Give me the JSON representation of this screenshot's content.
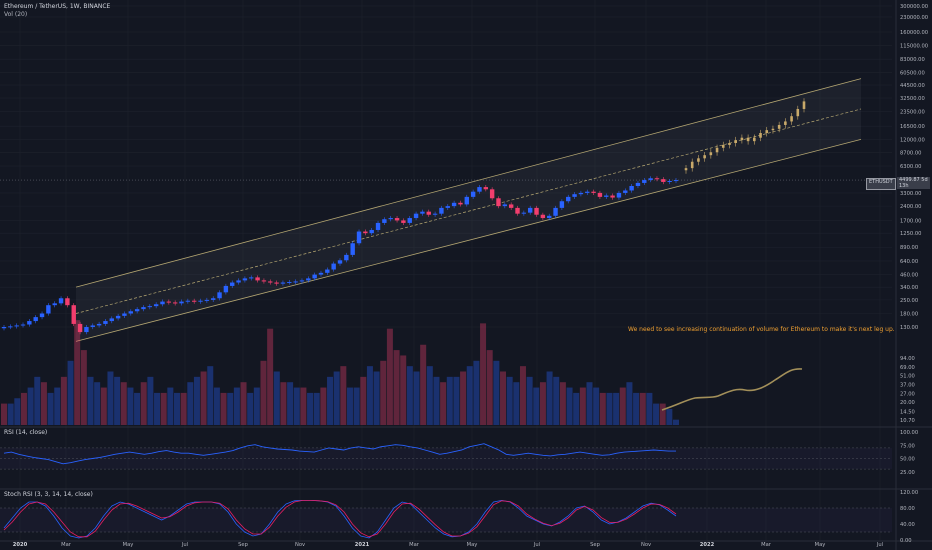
{
  "header": {
    "symbol_title": "Ethereum / TetherUS, 1W, BINANCE",
    "volume_title": "Vol (20)",
    "rsi_title": "RSI (14, close)",
    "stoch_title": "Stoch RSI (3, 3, 14, 14, close)"
  },
  "annotation": {
    "text": "We need to see increasing continuation of volume for Ethereum to make it's next leg up."
  },
  "symbol_tag": {
    "label": "ETHUSDT",
    "countdown": "5d 13h"
  },
  "price_tag": {
    "value": "4499.87"
  },
  "colors": {
    "background": "#131722",
    "up_candle": "#2962ff",
    "down_candle": "#f23e6e",
    "future_candle": "#c8a96a",
    "channel": "#b5a772",
    "annotation": "#f0a030",
    "rsi_line": "#2962ff",
    "stoch_k": "#2962ff",
    "stoch_d": "#e91e63",
    "volume_projection": "#a3905a"
  },
  "chart_data": [
    {
      "type": "candlestick",
      "scale": "log",
      "title": "Ethereum / TetherUS, 1W, BINANCE",
      "price_axis_ticks": [
        "300000.00",
        "230000.00",
        "160000.00",
        "115000.00",
        "83000.00",
        "60500.00",
        "44500.00",
        "32500.00",
        "23500.00",
        "16500.00",
        "12000.00",
        "8700.00",
        "6300.00",
        "4499.87",
        "3300.00",
        "2400.00",
        "1700.00",
        "1250.00",
        "890.00",
        "640.00",
        "460.00",
        "340.00",
        "250.00",
        "180.00",
        "130.00"
      ],
      "time_axis_ticks": [
        "2020",
        "Mar",
        "May",
        "Jul",
        "Sep",
        "Nov",
        "2021",
        "Mar",
        "May",
        "Jul",
        "Sep",
        "Nov",
        "2022",
        "Mar",
        "May",
        "Jul"
      ],
      "ylim": [
        100,
        330000
      ],
      "last_price": 4499.87,
      "close_estimates": [
        130,
        132,
        135,
        138,
        150,
        165,
        180,
        220,
        230,
        260,
        220,
        140,
        115,
        130,
        135,
        140,
        150,
        160,
        170,
        180,
        190,
        200,
        210,
        215,
        225,
        240,
        235,
        230,
        240,
        245,
        240,
        245,
        250,
        260,
        300,
        350,
        380,
        400,
        420,
        430,
        400,
        390,
        380,
        370,
        380,
        385,
        390,
        400,
        420,
        460,
        480,
        520,
        600,
        650,
        740,
        980,
        1300,
        1250,
        1350,
        1600,
        1750,
        1800,
        1700,
        1600,
        1800,
        2000,
        2100,
        1950,
        2000,
        2300,
        2400,
        2600,
        2500,
        3000,
        3400,
        3800,
        3600,
        2900,
        2400,
        2500,
        2300,
        2000,
        2050,
        2300,
        1950,
        1800,
        1900,
        2300,
        2700,
        3000,
        3200,
        3300,
        3400,
        3300,
        3000,
        3100,
        2950,
        3300,
        3500,
        3900,
        4200,
        4500,
        4700,
        4600,
        4300,
        4400,
        4499.87
      ],
      "channel": {
        "description": "ascending parallel channel with dashed midline",
        "upper_start": 340,
        "upper_end": 52000,
        "lower_start": 92,
        "lower_end": 12000,
        "mid_start": 180,
        "mid_end": 25000
      },
      "projected_prices": [
        6000,
        7000,
        7600,
        8200,
        8800,
        9800,
        10500,
        11000,
        11800,
        12500,
        11500,
        12500,
        14000,
        15000,
        15500,
        17000,
        18500,
        21000,
        25000,
        30000
      ]
    },
    {
      "type": "bar",
      "title": "Vol (20)",
      "axis_ticks": [
        "94.00",
        "69.00",
        "51.00",
        "37.00",
        "27.00",
        "20.00",
        "14.50",
        "10.70"
      ],
      "relative_volume": [
        0.2,
        0.2,
        0.25,
        0.3,
        0.35,
        0.45,
        0.4,
        0.3,
        0.35,
        0.45,
        0.6,
        0.98,
        0.7,
        0.45,
        0.4,
        0.35,
        0.5,
        0.45,
        0.4,
        0.35,
        0.3,
        0.4,
        0.45,
        0.3,
        0.3,
        0.35,
        0.3,
        0.3,
        0.4,
        0.45,
        0.5,
        0.55,
        0.35,
        0.3,
        0.3,
        0.35,
        0.4,
        0.3,
        0.35,
        0.6,
        0.9,
        0.5,
        0.4,
        0.4,
        0.35,
        0.35,
        0.3,
        0.3,
        0.35,
        0.45,
        0.5,
        0.55,
        0.35,
        0.35,
        0.45,
        0.55,
        0.5,
        0.6,
        0.9,
        0.7,
        0.65,
        0.55,
        0.5,
        0.75,
        0.55,
        0.45,
        0.4,
        0.45,
        0.45,
        0.5,
        0.55,
        0.6,
        0.95,
        0.7,
        0.6,
        0.5,
        0.45,
        0.4,
        0.55,
        0.45,
        0.35,
        0.4,
        0.5,
        0.45,
        0.4,
        0.35,
        0.3,
        0.35,
        0.4,
        0.35,
        0.3,
        0.3,
        0.3,
        0.35,
        0.4,
        0.3,
        0.3,
        0.3,
        0.2,
        0.2,
        0.15,
        0.05
      ],
      "projection_description": "hand-drawn rising curve projecting increasing volume"
    },
    {
      "type": "line",
      "title": "RSI (14, close)",
      "axis_ticks": [
        "100.00",
        "75.00",
        "50.00",
        "25.00"
      ],
      "ylim": [
        0,
        100
      ],
      "bands": [
        30,
        70
      ],
      "values": [
        60,
        62,
        58,
        55,
        52,
        50,
        48,
        44,
        40,
        42,
        45,
        48,
        50,
        52,
        55,
        58,
        60,
        62,
        60,
        58,
        60,
        63,
        65,
        62,
        60,
        60,
        58,
        56,
        58,
        60,
        62,
        65,
        70,
        74,
        76,
        72,
        70,
        68,
        67,
        66,
        64,
        63,
        62,
        66,
        70,
        68,
        66,
        70,
        72,
        70,
        68,
        72,
        74,
        76,
        75,
        72,
        70,
        66,
        62,
        58,
        60,
        63,
        66,
        72,
        75,
        78,
        72,
        66,
        58,
        56,
        58,
        60,
        58,
        56,
        55,
        57,
        58,
        60,
        62,
        60,
        58,
        56,
        57,
        60,
        62,
        63,
        64,
        65,
        66,
        65,
        64,
        64
      ]
    },
    {
      "type": "line",
      "title": "Stoch RSI (3, 3, 14, 14, close)",
      "axis_ticks": [
        "120.00",
        "80.00",
        "40.00",
        "0.00"
      ],
      "ylim": [
        0,
        120
      ],
      "series": [
        {
          "values": [
            30,
            55,
            80,
            95,
            95,
            85,
            60,
            30,
            10,
            5,
            10,
            30,
            60,
            85,
            95,
            90,
            80,
            70,
            60,
            50,
            60,
            75,
            90,
            95,
            95,
            95,
            90,
            70,
            40,
            20,
            10,
            15,
            40,
            70,
            90,
            98,
            99,
            99,
            98,
            95,
            85,
            60,
            30,
            10,
            5,
            20,
            50,
            80,
            95,
            90,
            70,
            50,
            30,
            15,
            8,
            10,
            20,
            40,
            70,
            95,
            99,
            95,
            80,
            60,
            50,
            40,
            35,
            45,
            60,
            80,
            85,
            70,
            50,
            40,
            45,
            55,
            70,
            85,
            92,
            88,
            75,
            60
          ]
        },
        {
          "values": [
            25,
            45,
            70,
            90,
            95,
            90,
            70,
            45,
            20,
            8,
            8,
            22,
            50,
            75,
            90,
            92,
            85,
            75,
            65,
            55,
            58,
            70,
            85,
            93,
            95,
            95,
            92,
            78,
            50,
            28,
            15,
            15,
            32,
            60,
            82,
            95,
            99,
            99,
            98,
            96,
            88,
            70,
            40,
            18,
            8,
            15,
            40,
            70,
            90,
            92,
            78,
            58,
            38,
            20,
            10,
            10,
            17,
            33,
            60,
            88,
            98,
            96,
            85,
            65,
            52,
            42,
            36,
            42,
            55,
            75,
            84,
            75,
            56,
            44,
            44,
            52,
            65,
            80,
            90,
            89,
            80,
            65
          ]
        }
      ]
    }
  ]
}
